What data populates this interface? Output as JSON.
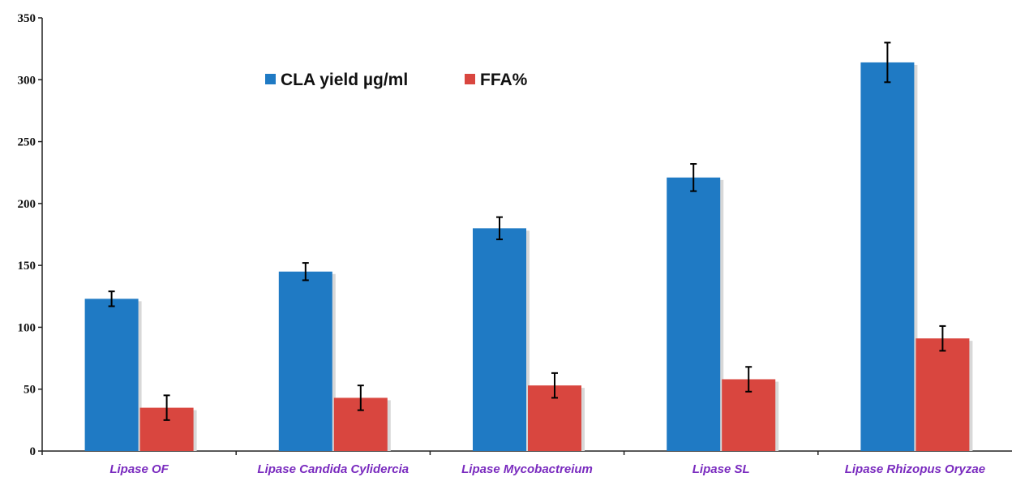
{
  "chart_data": {
    "type": "bar",
    "title": "",
    "xlabel": "",
    "ylabel": "",
    "categories": [
      "Lipase OF",
      "Lipase Candida Cylidercia",
      "Lipase Mycobactreium",
      "Lipase SL",
      "Lipase Rhizopus Oryzae"
    ],
    "series": [
      {
        "name": "CLA yield µg/ml",
        "color": "#1f7ac4",
        "values": [
          123,
          145,
          180,
          221,
          314
        ],
        "errors": [
          6,
          7,
          9,
          11,
          16
        ]
      },
      {
        "name": "FFA%",
        "color": "#d9463f",
        "values": [
          35,
          43,
          53,
          58,
          91
        ],
        "errors": [
          10,
          10,
          10,
          10,
          10
        ]
      }
    ],
    "ylim": [
      0,
      350
    ],
    "yticks": [
      "0",
      "50",
      "100",
      "150",
      "200",
      "250",
      "300",
      "350"
    ],
    "grid": false,
    "legend_position": "top-left"
  }
}
